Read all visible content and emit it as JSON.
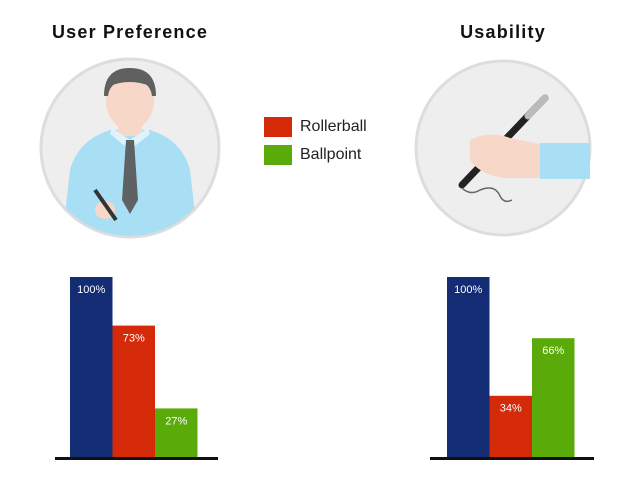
{
  "chart_data": [
    {
      "type": "bar",
      "title": "User Preference",
      "values": [
        100,
        73,
        27
      ],
      "value_labels": [
        "100%",
        "73%",
        "27%"
      ],
      "colors": [
        "#132c74",
        "#d42a0a",
        "#5aaa0a"
      ],
      "ylim": [
        0,
        100
      ]
    },
    {
      "type": "bar",
      "title": "Usability",
      "values": [
        100,
        34,
        66
      ],
      "value_labels": [
        "100%",
        "34%",
        "66%"
      ],
      "colors": [
        "#132c74",
        "#d42a0a",
        "#5aaa0a"
      ],
      "ylim": [
        0,
        100
      ]
    }
  ],
  "legend": [
    {
      "name": "Rollerball",
      "color": "#d42a0a"
    },
    {
      "name": "Ballpoint",
      "color": "#5aaa0a"
    }
  ]
}
